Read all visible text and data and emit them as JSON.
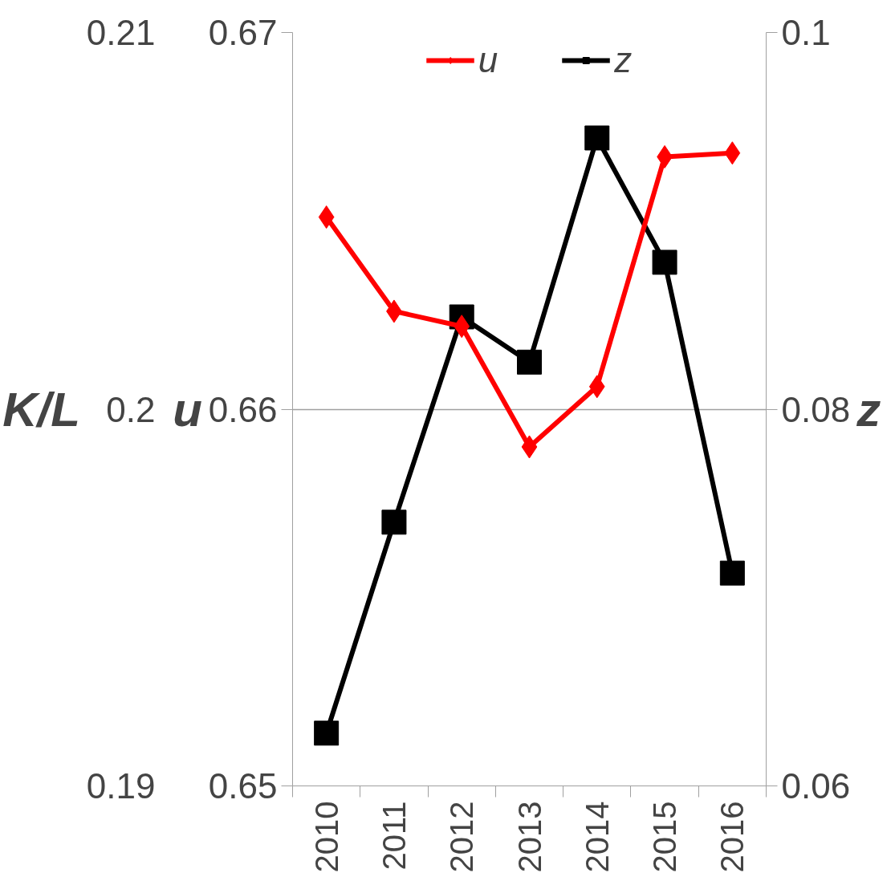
{
  "chart_data": {
    "type": "line",
    "categories": [
      "2010",
      "2011",
      "2012",
      "2013",
      "2014",
      "2015",
      "2016"
    ],
    "series": [
      {
        "name": "u",
        "color": "#ff0000",
        "marker": "diamond",
        "values": [
          0.6651,
          0.6626,
          0.6622,
          0.659,
          0.6606,
          0.6667,
          0.6668
        ]
      },
      {
        "name": "z",
        "color": "#000000",
        "marker": "square",
        "axis": "y2",
        "values": [
          0.0628,
          0.074,
          0.0849,
          0.0825,
          0.0944,
          0.0878,
          0.0713
        ]
      }
    ],
    "ylabel": "u",
    "y2label": "z",
    "y3label": "K/L",
    "ylim": [
      0.65,
      0.67
    ],
    "yticks": [
      0.65,
      0.66,
      0.67
    ],
    "y2lim": [
      0.06,
      0.1
    ],
    "y2ticks": [
      0.06,
      0.08,
      0.1
    ],
    "y3lim": [
      0.19,
      0.21
    ],
    "y3ticks": [
      0.19,
      0.2,
      0.21
    ],
    "grid": "y",
    "legend": "top",
    "line_style": "solid"
  }
}
